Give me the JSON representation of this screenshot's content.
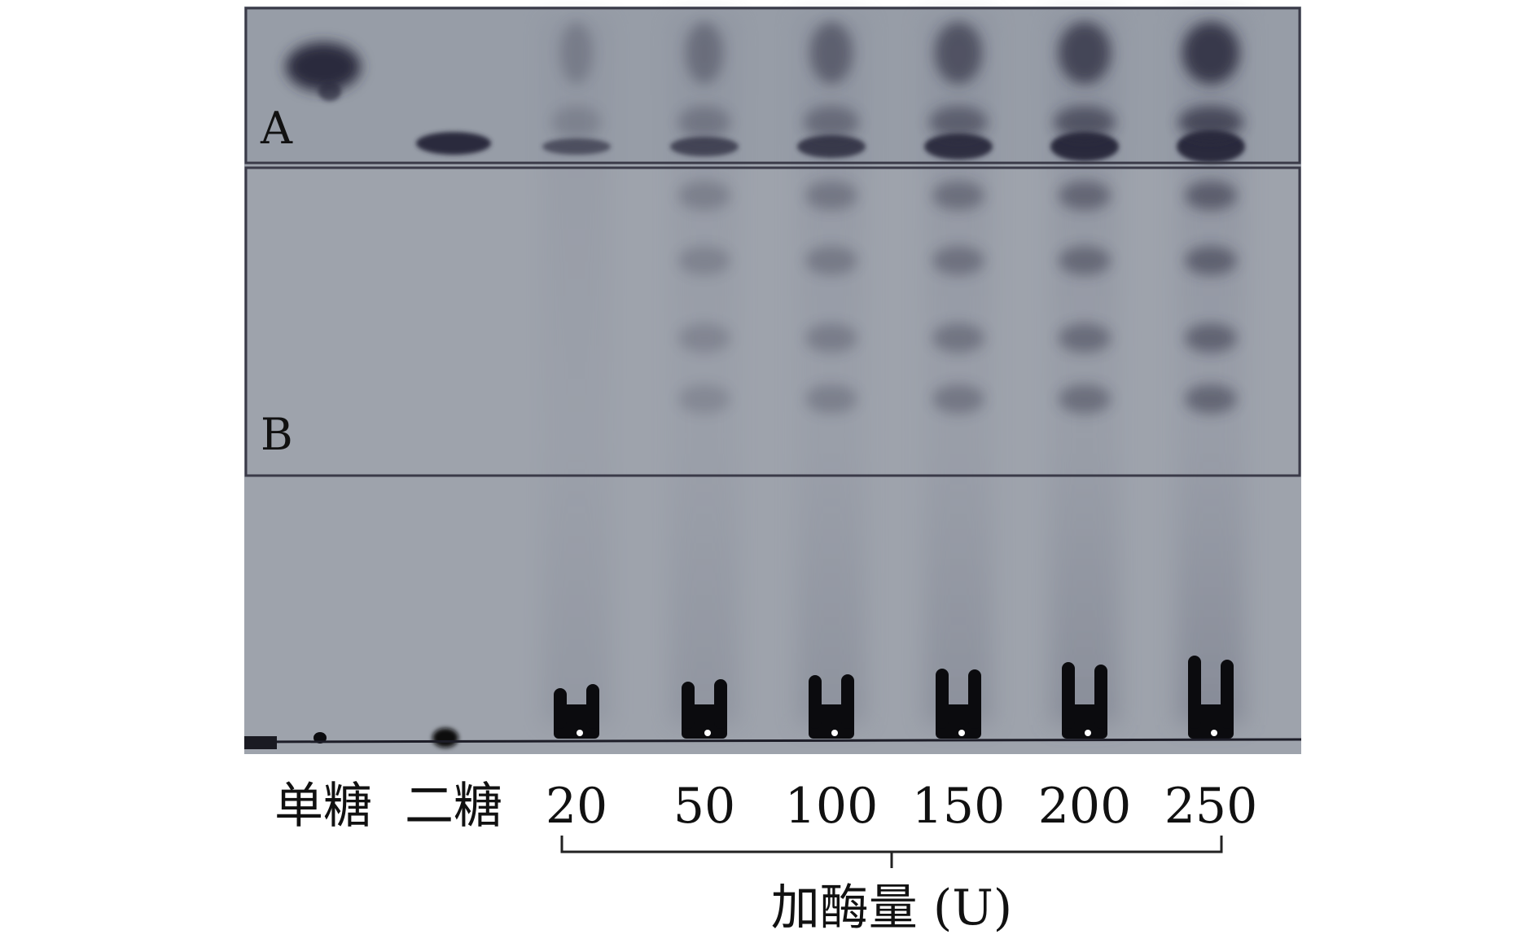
{
  "plate": {
    "regions": [
      {
        "label": "A"
      },
      {
        "label": "B"
      }
    ],
    "lanes": [
      {
        "label": "单糖",
        "kind": "standard"
      },
      {
        "label": "二糖",
        "kind": "standard"
      },
      {
        "label": "20",
        "kind": "sample"
      },
      {
        "label": "50",
        "kind": "sample"
      },
      {
        "label": "100",
        "kind": "sample"
      },
      {
        "label": "150",
        "kind": "sample"
      },
      {
        "label": "200",
        "kind": "sample"
      },
      {
        "label": "250",
        "kind": "sample"
      }
    ],
    "group_label": "加酶量 (U)"
  },
  "colors": {
    "plate_bg": "#9ea3ac",
    "band": "#2a2a3e",
    "spot": "#0b0b0e",
    "frame": "#3a3a48",
    "text": "#111111"
  }
}
